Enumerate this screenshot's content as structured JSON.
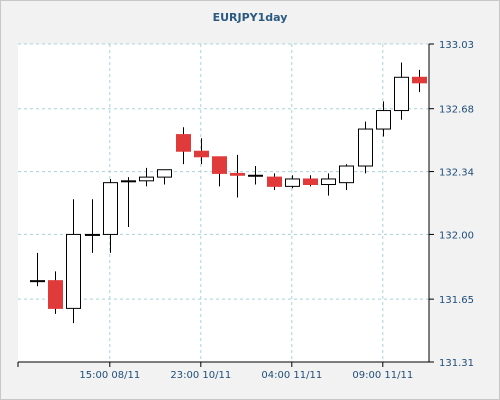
{
  "chart_data": {
    "type": "candlestick",
    "title": "EURJPY1day",
    "y_axis": {
      "position": "right",
      "ticks": [
        131.31,
        131.65,
        132.0,
        132.34,
        132.68,
        133.03
      ],
      "tick_labels": [
        "131.31",
        "131.65",
        "132.00",
        "132.34",
        "132.68",
        "133.03"
      ],
      "range": [
        131.31,
        133.03
      ]
    },
    "x_axis": {
      "tick_labels": [
        {
          "label": "15:00 08/11",
          "index": 4
        },
        {
          "label": "23:00 10/11",
          "index": 9
        },
        {
          "label": "04:00 11/11",
          "index": 14
        },
        {
          "label": "09:00 11/11",
          "index": 19
        }
      ],
      "count": 22
    },
    "grid": true,
    "colors": {
      "up_fill": "#ffffff",
      "down_fill": "#e03a3a",
      "outline": "#000000",
      "grid": "#a8d4dc",
      "background": "#ffffff",
      "frame": "#f2f2f2",
      "text": "#1f4e79"
    },
    "candles": [
      {
        "open": 131.75,
        "high": 131.9,
        "low": 131.72,
        "close": 131.75
      },
      {
        "open": 131.75,
        "high": 131.8,
        "low": 131.57,
        "close": 131.6
      },
      {
        "open": 131.6,
        "high": 132.19,
        "low": 131.52,
        "close": 132.0
      },
      {
        "open": 132.0,
        "high": 132.19,
        "low": 131.9,
        "close": 132.0
      },
      {
        "open": 132.0,
        "high": 132.3,
        "low": 131.9,
        "close": 132.28
      },
      {
        "open": 132.29,
        "high": 132.31,
        "low": 132.04,
        "close": 132.29
      },
      {
        "open": 132.29,
        "high": 132.36,
        "low": 132.26,
        "close": 132.31
      },
      {
        "open": 132.31,
        "high": 132.35,
        "low": 132.27,
        "close": 132.35
      },
      {
        "open": 132.54,
        "high": 132.58,
        "low": 132.38,
        "close": 132.45
      },
      {
        "open": 132.45,
        "high": 132.52,
        "low": 132.38,
        "close": 132.42
      },
      {
        "open": 132.42,
        "high": 132.42,
        "low": 132.26,
        "close": 132.33
      },
      {
        "open": 132.33,
        "high": 132.43,
        "low": 132.2,
        "close": 132.32
      },
      {
        "open": 132.32,
        "high": 132.37,
        "low": 132.27,
        "close": 132.32
      },
      {
        "open": 132.31,
        "high": 132.33,
        "low": 132.24,
        "close": 132.26
      },
      {
        "open": 132.26,
        "high": 132.32,
        "low": 132.25,
        "close": 132.3
      },
      {
        "open": 132.3,
        "high": 132.32,
        "low": 132.26,
        "close": 132.27
      },
      {
        "open": 132.27,
        "high": 132.33,
        "low": 132.21,
        "close": 132.3
      },
      {
        "open": 132.28,
        "high": 132.38,
        "low": 132.24,
        "close": 132.37
      },
      {
        "open": 132.37,
        "high": 132.61,
        "low": 132.33,
        "close": 132.57
      },
      {
        "open": 132.57,
        "high": 132.72,
        "low": 132.53,
        "close": 132.67
      },
      {
        "open": 132.67,
        "high": 132.93,
        "low": 132.62,
        "close": 132.85
      },
      {
        "open": 132.85,
        "high": 132.89,
        "low": 132.77,
        "close": 132.82
      }
    ]
  }
}
